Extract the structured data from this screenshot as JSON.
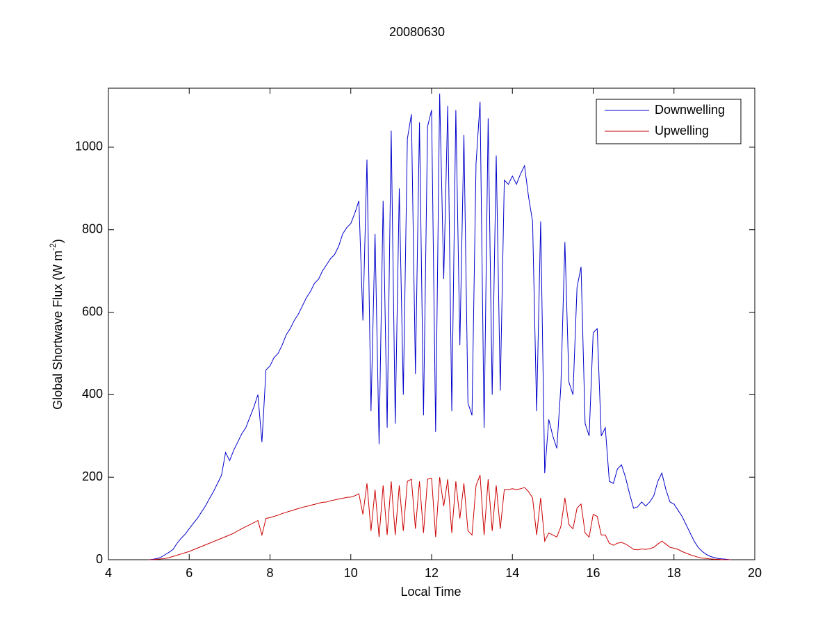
{
  "chart_data": {
    "type": "line",
    "title": "20080630",
    "xlabel": "Local Time",
    "ylabel": "Global Shortwave Flux (W m",
    "ylabel_sup": "-2",
    "ylabel_end": ")",
    "xlim": [
      4,
      20
    ],
    "xticks": [
      4,
      6,
      8,
      10,
      12,
      14,
      16,
      18,
      20
    ],
    "ylim": [
      0,
      1143
    ],
    "yticks": [
      0,
      200,
      400,
      600,
      800,
      1000
    ],
    "legend": "upper right",
    "x": [
      5,
      5.1,
      5.2,
      5.3,
      5.4,
      5.5,
      5.6,
      5.7,
      5.8,
      5.9,
      6,
      6.1,
      6.2,
      6.3,
      6.4,
      6.5,
      6.6,
      6.7,
      6.8,
      6.9,
      7,
      7.1,
      7.2,
      7.3,
      7.4,
      7.5,
      7.6,
      7.7,
      7.8,
      7.9,
      8,
      8.1,
      8.2,
      8.3,
      8.4,
      8.5,
      8.6,
      8.7,
      8.8,
      8.9,
      9,
      9.1,
      9.2,
      9.3,
      9.4,
      9.5,
      9.6,
      9.7,
      9.8,
      9.9,
      10,
      10.1,
      10.2,
      10.3,
      10.4,
      10.5,
      10.6,
      10.7,
      10.8,
      10.9,
      11,
      11.1,
      11.2,
      11.3,
      11.4,
      11.5,
      11.6,
      11.7,
      11.8,
      11.9,
      12,
      12.1,
      12.2,
      12.3,
      12.4,
      12.5,
      12.6,
      12.7,
      12.8,
      12.9,
      13,
      13.1,
      13.2,
      13.3,
      13.4,
      13.5,
      13.6,
      13.7,
      13.8,
      13.9,
      14,
      14.1,
      14.2,
      14.3,
      14.4,
      14.5,
      14.6,
      14.7,
      14.8,
      14.9,
      15,
      15.1,
      15.2,
      15.3,
      15.4,
      15.5,
      15.6,
      15.7,
      15.8,
      15.9,
      16,
      16.1,
      16.2,
      16.3,
      16.4,
      16.5,
      16.6,
      16.7,
      16.8,
      16.9,
      17,
      17.1,
      17.2,
      17.3,
      17.4,
      17.5,
      17.6,
      17.7,
      17.8,
      17.9,
      18,
      18.1,
      18.2,
      18.3,
      18.4,
      18.5,
      18.6,
      18.7,
      18.8,
      18.9,
      19,
      19.1,
      19.2,
      19.3,
      19.4
    ],
    "series": [
      {
        "name": "Downwelling",
        "color": "#0000cc",
        "values": [
          0,
          1,
          3,
          6,
          12,
          18,
          25,
          40,
          52,
          62,
          75,
          88,
          100,
          115,
          130,
          148,
          165,
          185,
          205,
          260,
          240,
          265,
          285,
          305,
          320,
          345,
          370,
          400,
          285,
          460,
          470,
          490,
          500,
          520,
          545,
          560,
          580,
          595,
          615,
          635,
          650,
          670,
          680,
          700,
          715,
          730,
          740,
          760,
          790,
          805,
          815,
          840,
          870,
          580,
          970,
          360,
          790,
          280,
          870,
          320,
          1040,
          330,
          900,
          400,
          1020,
          1080,
          450,
          1060,
          350,
          1050,
          1090,
          310,
          1130,
          680,
          1100,
          360,
          1090,
          520,
          1030,
          380,
          350,
          960,
          1110,
          320,
          1070,
          400,
          980,
          410,
          920,
          910,
          930,
          910,
          935,
          955,
          880,
          820,
          360,
          820,
          210,
          340,
          300,
          270,
          420,
          770,
          430,
          400,
          660,
          710,
          330,
          300,
          550,
          560,
          300,
          320,
          190,
          185,
          220,
          230,
          200,
          160,
          125,
          128,
          140,
          130,
          140,
          155,
          190,
          210,
          170,
          140,
          135,
          120,
          105,
          85,
          65,
          45,
          30,
          20,
          13,
          8,
          5,
          3,
          2,
          1,
          0
        ]
      },
      {
        "name": "Upwelling",
        "color": "#cc0000",
        "values": [
          0,
          0,
          1,
          2,
          3,
          5,
          8,
          11,
          14,
          17,
          20,
          24,
          28,
          32,
          36,
          40,
          44,
          48,
          52,
          56,
          60,
          64,
          70,
          75,
          80,
          85,
          90,
          95,
          60,
          100,
          102,
          105,
          108,
          112,
          115,
          118,
          121,
          124,
          127,
          129,
          132,
          134,
          137,
          139,
          140,
          143,
          145,
          147,
          149,
          151,
          152,
          155,
          160,
          110,
          185,
          70,
          170,
          55,
          180,
          60,
          190,
          60,
          180,
          70,
          190,
          195,
          75,
          190,
          65,
          195,
          198,
          55,
          200,
          130,
          195,
          65,
          190,
          100,
          185,
          70,
          60,
          180,
          205,
          60,
          195,
          70,
          180,
          75,
          170,
          170,
          172,
          170,
          172,
          175,
          165,
          150,
          60,
          150,
          45,
          65,
          60,
          55,
          80,
          150,
          85,
          75,
          125,
          135,
          65,
          55,
          110,
          105,
          60,
          60,
          40,
          35,
          40,
          42,
          38,
          32,
          25,
          24,
          26,
          25,
          27,
          30,
          38,
          45,
          38,
          30,
          28,
          25,
          20,
          16,
          12,
          9,
          6,
          4,
          3,
          2,
          1,
          1,
          0,
          0,
          0
        ]
      }
    ]
  }
}
